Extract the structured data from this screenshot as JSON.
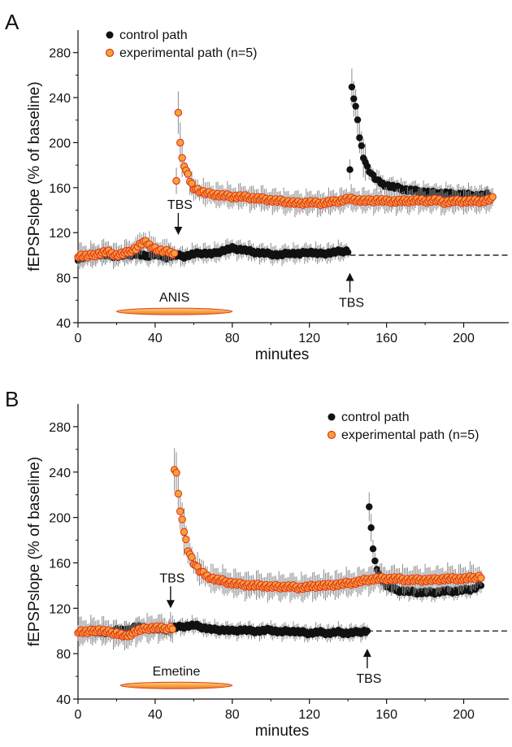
{
  "chart_data": [
    {
      "panel_label": "A",
      "type": "scatter",
      "xlabel": "minutes",
      "ylabel": "fEPSPslope (% of baseline)",
      "xlim": [
        0,
        220
      ],
      "ylim": [
        40,
        300
      ],
      "xticks": [
        0,
        40,
        80,
        120,
        160,
        200
      ],
      "yticks": [
        40,
        80,
        120,
        160,
        200,
        240,
        280
      ],
      "baseline_value": 100,
      "legend_position": "top-left",
      "series": [
        {
          "name": "control path",
          "color": "#111111",
          "points": [
            [
              0,
              97
            ],
            [
              5,
              99
            ],
            [
              10,
              101
            ],
            [
              15,
              100
            ],
            [
              20,
              99
            ],
            [
              25,
              100
            ],
            [
              30,
              101
            ],
            [
              35,
              99
            ],
            [
              40,
              101
            ],
            [
              45,
              98
            ],
            [
              50,
              100
            ],
            [
              55,
              99
            ],
            [
              60,
              101
            ],
            [
              65,
              102
            ],
            [
              70,
              101
            ],
            [
              75,
              104
            ],
            [
              80,
              106
            ],
            [
              85,
              105
            ],
            [
              90,
              103
            ],
            [
              95,
              102
            ],
            [
              100,
              101
            ],
            [
              105,
              100
            ],
            [
              110,
              102
            ],
            [
              115,
              101
            ],
            [
              120,
              103
            ],
            [
              125,
              101
            ],
            [
              130,
              102
            ],
            [
              135,
              103
            ],
            [
              140,
              104
            ],
            [
              142,
              248
            ],
            [
              144,
              232
            ],
            [
              146,
              205
            ],
            [
              148,
              188
            ],
            [
              150,
              178
            ],
            [
              153,
              170
            ],
            [
              156,
              165
            ],
            [
              160,
              162
            ],
            [
              165,
              160
            ],
            [
              170,
              158
            ],
            [
              175,
              157
            ],
            [
              180,
              156
            ],
            [
              185,
              155
            ],
            [
              190,
              155
            ],
            [
              195,
              154
            ],
            [
              200,
              154
            ],
            [
              205,
              153
            ],
            [
              210,
              153
            ],
            [
              213,
              154
            ]
          ],
          "error": 7
        },
        {
          "name": "experimental path (n=5)",
          "color": "#f5a23c",
          "edge": "#e2361b",
          "points": [
            [
              0,
              100
            ],
            [
              5,
              99
            ],
            [
              10,
              101
            ],
            [
              15,
              103
            ],
            [
              20,
              100
            ],
            [
              25,
              102
            ],
            [
              30,
              106
            ],
            [
              34,
              112
            ],
            [
              38,
              108
            ],
            [
              42,
              104
            ],
            [
              46,
              103
            ],
            [
              50,
              102
            ],
            [
              52,
              228
            ],
            [
              53,
              200
            ],
            [
              54,
              185
            ],
            [
              56,
              175
            ],
            [
              58,
              166
            ],
            [
              60,
              160
            ],
            [
              63,
              157
            ],
            [
              66,
              155
            ],
            [
              70,
              154
            ],
            [
              75,
              153
            ],
            [
              80,
              152
            ],
            [
              85,
              152
            ],
            [
              90,
              151
            ],
            [
              95,
              150
            ],
            [
              100,
              149
            ],
            [
              105,
              148
            ],
            [
              110,
              147
            ],
            [
              115,
              146
            ],
            [
              120,
              147
            ],
            [
              125,
              146
            ],
            [
              130,
              147
            ],
            [
              135,
              148
            ],
            [
              140,
              150
            ],
            [
              145,
              149
            ],
            [
              150,
              148
            ],
            [
              155,
              149
            ],
            [
              160,
              148
            ],
            [
              165,
              148
            ],
            [
              170,
              148
            ],
            [
              175,
              149
            ],
            [
              180,
              148
            ],
            [
              185,
              149
            ],
            [
              190,
              147
            ],
            [
              195,
              148
            ],
            [
              200,
              148
            ],
            [
              205,
              148
            ],
            [
              210,
              148
            ],
            [
              215,
              150
            ]
          ],
          "error": 9
        }
      ],
      "annotations": [
        {
          "text": "TBS",
          "x": 52,
          "y": 118,
          "arrow": "down"
        },
        {
          "text": "TBS",
          "x": 141,
          "y": 80,
          "arrow": "up"
        },
        {
          "text": "ANIS",
          "x_start": 20,
          "x_end": 80,
          "y": 50
        }
      ]
    },
    {
      "panel_label": "B",
      "type": "scatter",
      "xlabel": "minutes",
      "ylabel": "fEPSPslope (% of baseline)",
      "xlim": [
        0,
        220
      ],
      "ylim": [
        40,
        300
      ],
      "xticks": [
        0,
        40,
        80,
        120,
        160,
        200
      ],
      "yticks": [
        40,
        80,
        120,
        160,
        200,
        240,
        280
      ],
      "baseline_value": 100,
      "legend_position": "top-right",
      "series": [
        {
          "name": "control path",
          "color": "#111111",
          "points": [
            [
              0,
              100
            ],
            [
              5,
              99
            ],
            [
              10,
              100
            ],
            [
              15,
              98
            ],
            [
              20,
              101
            ],
            [
              25,
              100
            ],
            [
              30,
              104
            ],
            [
              35,
              102
            ],
            [
              40,
              102
            ],
            [
              45,
              101
            ],
            [
              50,
              103
            ],
            [
              55,
              104
            ],
            [
              60,
              105
            ],
            [
              65,
              103
            ],
            [
              70,
              101
            ],
            [
              75,
              101
            ],
            [
              80,
              100
            ],
            [
              85,
              101
            ],
            [
              90,
              100
            ],
            [
              95,
              100
            ],
            [
              100,
              101
            ],
            [
              105,
              99
            ],
            [
              110,
              100
            ],
            [
              115,
              99
            ],
            [
              120,
              98
            ],
            [
              125,
              99
            ],
            [
              130,
              98
            ],
            [
              135,
              99
            ],
            [
              140,
              98
            ],
            [
              145,
              99
            ],
            [
              150,
              100
            ],
            [
              151,
              208
            ],
            [
              152,
              192
            ],
            [
              153,
              172
            ],
            [
              154,
              160
            ],
            [
              156,
              150
            ],
            [
              158,
              144
            ],
            [
              160,
              140
            ],
            [
              165,
              136
            ],
            [
              170,
              135
            ],
            [
              175,
              134
            ],
            [
              180,
              134
            ],
            [
              185,
              134
            ],
            [
              190,
              135
            ],
            [
              195,
              135
            ],
            [
              200,
              136
            ],
            [
              205,
              137
            ],
            [
              209,
              141
            ]
          ],
          "error": 6
        },
        {
          "name": "experimental path (n=5)",
          "color": "#f5a23c",
          "edge": "#e2361b",
          "points": [
            [
              0,
              100
            ],
            [
              5,
              99
            ],
            [
              10,
              101
            ],
            [
              15,
              99
            ],
            [
              20,
              98
            ],
            [
              25,
              95
            ],
            [
              30,
              100
            ],
            [
              35,
              102
            ],
            [
              40,
              103
            ],
            [
              45,
              102
            ],
            [
              49,
              103
            ],
            [
              50,
              242
            ],
            [
              51,
              238
            ],
            [
              52,
              222
            ],
            [
              53,
              205
            ],
            [
              55,
              188
            ],
            [
              57,
              172
            ],
            [
              60,
              160
            ],
            [
              63,
              153
            ],
            [
              66,
              149
            ],
            [
              70,
              146
            ],
            [
              75,
              144
            ],
            [
              80,
              142
            ],
            [
              85,
              141
            ],
            [
              90,
              140
            ],
            [
              95,
              140
            ],
            [
              100,
              139
            ],
            [
              105,
              139
            ],
            [
              110,
              139
            ],
            [
              115,
              138
            ],
            [
              120,
              139
            ],
            [
              125,
              140
            ],
            [
              130,
              140
            ],
            [
              135,
              141
            ],
            [
              140,
              142
            ],
            [
              145,
              143
            ],
            [
              150,
              145
            ],
            [
              155,
              146
            ],
            [
              160,
              146
            ],
            [
              165,
              146
            ],
            [
              170,
              145
            ],
            [
              175,
              145
            ],
            [
              180,
              145
            ],
            [
              185,
              145
            ],
            [
              190,
              146
            ],
            [
              195,
              146
            ],
            [
              200,
              146
            ],
            [
              205,
              147
            ],
            [
              209,
              148
            ]
          ],
          "error": 10
        }
      ],
      "annotations": [
        {
          "text": "TBS",
          "x": 48,
          "y": 120,
          "arrow": "down"
        },
        {
          "text": "TBS",
          "x": 150,
          "y": 80,
          "arrow": "up"
        },
        {
          "text": "Emetine",
          "x_start": 22,
          "x_end": 80,
          "y": 52
        }
      ]
    }
  ]
}
